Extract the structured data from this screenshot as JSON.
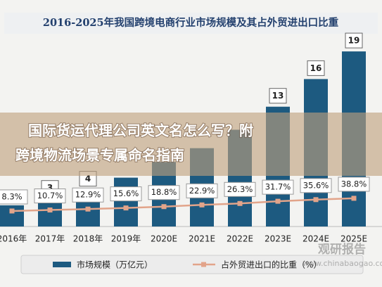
{
  "chart_data": {
    "type": "bar_line",
    "title": "2016-2025年我国跨境电商行业市场规模及其占外贸进出口比重",
    "categories": [
      "2016年",
      "2017年",
      "2018年",
      "2019年",
      "2020E",
      "2021E",
      "2022E",
      "2023E",
      "2024E",
      "2025E"
    ],
    "series": [
      {
        "name": "市场规模（万亿元）",
        "type": "bar",
        "color": "#1d5a80",
        "values": [
          2.3,
          3,
          4,
          5.3,
          7,
          8.5,
          10.5,
          13,
          16,
          19
        ],
        "value_labels": [
          null,
          "3",
          "4",
          null,
          null,
          null,
          null,
          "13",
          "16",
          "19"
        ]
      },
      {
        "name": "占外贸进出口的比重（%）",
        "type": "line",
        "axis": "y2",
        "color": "#e2a48a",
        "values": [
          8.3,
          10.7,
          12.9,
          15.6,
          18.8,
          22.9,
          26.3,
          31.7,
          35.6,
          38.8
        ],
        "value_labels": [
          "8.3%",
          "10.7%",
          "12.9%",
          "15.6%",
          "18.8%",
          "22.9%",
          "26.3%",
          "31.7%",
          "35.6%",
          "38.8%"
        ]
      }
    ],
    "ylim": [
      0,
      20
    ],
    "y2lim": [
      -29,
      414
    ]
  },
  "banner": [
    "国际货运代理公司英文名怎么写？附",
    "跨境物流场景专属命名指南"
  ],
  "watermark": [
    "观研报告",
    "www.chinabaogao.com"
  ]
}
